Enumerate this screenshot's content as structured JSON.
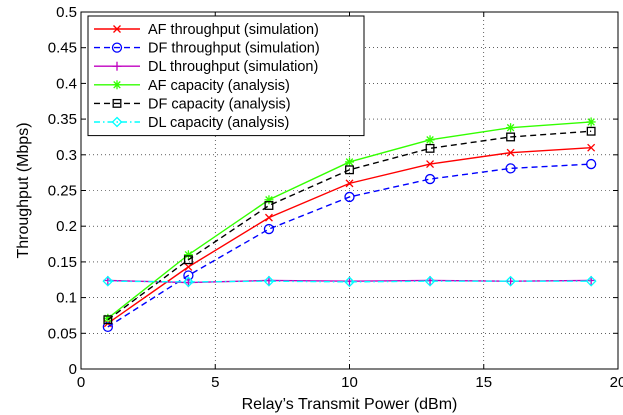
{
  "chart_data": {
    "type": "line",
    "xlabel": "Relay’s Transmit Power (dBm)",
    "ylabel": "Throughput (Mbps)",
    "xlim": [
      0,
      20
    ],
    "ylim": [
      0,
      0.5
    ],
    "xticks": [
      0,
      5,
      10,
      15,
      20
    ],
    "yticks": [
      0,
      0.05,
      0.1,
      0.15,
      0.2,
      0.25,
      0.3,
      0.35,
      0.4,
      0.45,
      0.5
    ],
    "xtick_labels": [
      "0",
      "5",
      "10",
      "15",
      "20"
    ],
    "ytick_labels": [
      "0",
      "0.05",
      "0.1",
      "0.15",
      "0.2",
      "0.25",
      "0.3",
      "0.35",
      "0.4",
      "0.45",
      "0.5"
    ],
    "grid": true,
    "legend_position": "top-left",
    "x": [
      1,
      4,
      7,
      10,
      13,
      16,
      19
    ],
    "series": [
      {
        "name": "AF throughput (simulation)",
        "color": "#ff0000",
        "dash": "solid",
        "marker": "x",
        "values": [
          0.064,
          0.143,
          0.212,
          0.26,
          0.287,
          0.303,
          0.31
        ]
      },
      {
        "name": "DF throughput (simulation)",
        "color": "#0000ff",
        "dash": "dashed",
        "marker": "circle",
        "values": [
          0.059,
          0.131,
          0.196,
          0.241,
          0.266,
          0.281,
          0.287
        ]
      },
      {
        "name": "DL throughput (simulation)",
        "color": "#c000c0",
        "dash": "solid",
        "marker": "plus",
        "values": [
          0.124,
          0.121,
          0.124,
          0.123,
          0.124,
          0.123,
          0.124
        ]
      },
      {
        "name": "AF capacity (analysis)",
        "color": "#33ff00",
        "dash": "solid",
        "marker": "asterisk",
        "values": [
          0.071,
          0.16,
          0.237,
          0.29,
          0.321,
          0.338,
          0.346
        ]
      },
      {
        "name": "DF capacity (analysis)",
        "color": "#000000",
        "dash": "dashed",
        "marker": "square",
        "values": [
          0.069,
          0.153,
          0.229,
          0.279,
          0.309,
          0.325,
          0.333
        ]
      },
      {
        "name": "DL capacity (analysis)",
        "color": "#00ffff",
        "dash": "dashdot",
        "marker": "diamond",
        "values": [
          0.123,
          0.122,
          0.123,
          0.122,
          0.123,
          0.123,
          0.123
        ]
      }
    ]
  }
}
